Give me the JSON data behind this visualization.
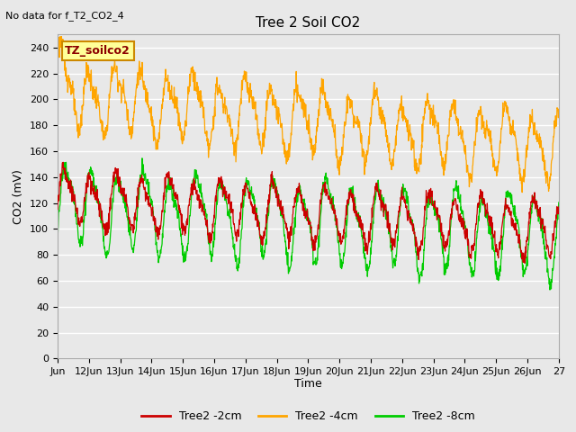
{
  "title": "Tree 2 Soil CO2",
  "no_data_note": "No data for f_T2_CO2_4",
  "ylabel": "CO2 (mV)",
  "xlabel": "Time",
  "annotation_label": "TZ_soilco2",
  "ylim": [
    0,
    250
  ],
  "yticks": [
    0,
    20,
    40,
    60,
    80,
    100,
    120,
    140,
    160,
    180,
    200,
    220,
    240
  ],
  "xtick_labels": [
    "Jun",
    "12Jun",
    "13Jun",
    "14Jun",
    "15Jun",
    "16Jun",
    "17Jun",
    "18Jun",
    "19Jun",
    "20Jun",
    "21Jun",
    "22Jun",
    "23Jun",
    "24Jun",
    "25Jun",
    "26Jun",
    "27"
  ],
  "bg_color": "#e8e8e8",
  "plot_bg_color": "#e8e8e8",
  "grid_color": "#ffffff",
  "series_2cm_color": "#cc0000",
  "series_4cm_color": "#ffa500",
  "series_8cm_color": "#00cc00",
  "legend_labels": [
    "Tree2 -2cm",
    "Tree2 -4cm",
    "Tree2 -8cm"
  ],
  "annotation_bg": "#ffff99",
  "annotation_border": "#cc8800",
  "figwidth": 6.4,
  "figheight": 4.8,
  "dpi": 100
}
